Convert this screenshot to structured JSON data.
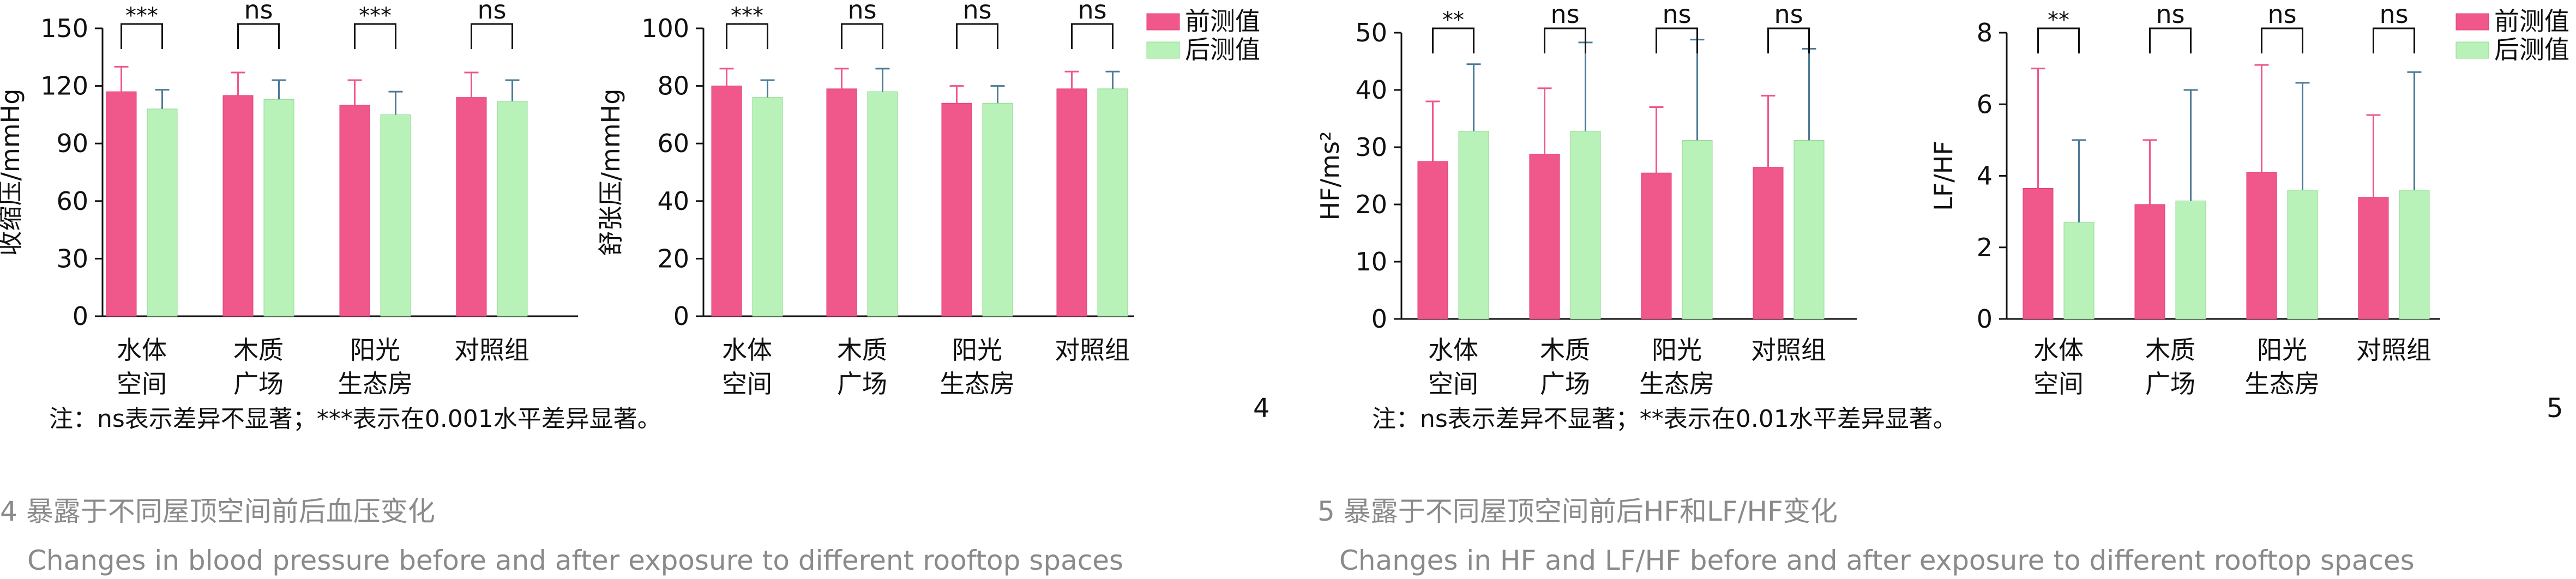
{
  "colors": {
    "before": "#f0578a",
    "after": "#b8f2b8",
    "axis": "#111111",
    "caption": "#8a8a8a",
    "before_err": "#f0578a",
    "after_err": "#4d7a96"
  },
  "figures": [
    {
      "number": "4",
      "note": "注：ns表示差异不显著；***表示在0.001水平差异显著。",
      "caption_cn": "4 暴露于不同屋顶空间前后血压变化",
      "caption_en": "Changes in blood pressure before and after exposure to different rooftop spaces"
    },
    {
      "number": "5",
      "note": "注：ns表示差异不显著；**表示在0.01水平差异显著。",
      "caption_cn": "5 暴露于不同屋顶空间前后HF和LF/HF变化",
      "caption_en": "Changes in HF and LF/HF before and after exposure to different rooftop spaces"
    }
  ],
  "chart_data": [
    {
      "type": "bar",
      "ylabel": "收缩压/mmHg",
      "ylim": [
        0,
        150
      ],
      "yticks": [
        0,
        30,
        60,
        90,
        120,
        150
      ],
      "categories": [
        [
          "水体",
          "空间"
        ],
        [
          "木质",
          "广场"
        ],
        [
          "阳光",
          "生态房"
        ],
        [
          "对照组"
        ]
      ],
      "series": [
        {
          "name": "前测值",
          "values": [
            117,
            115,
            110,
            114
          ],
          "errors": [
            13,
            12,
            13,
            13
          ]
        },
        {
          "name": "后测值",
          "values": [
            108,
            113,
            105,
            112
          ],
          "errors": [
            10,
            10,
            12,
            11
          ]
        }
      ],
      "significance": [
        "***",
        "ns",
        "***",
        "ns"
      ],
      "legend": false
    },
    {
      "type": "bar",
      "ylabel": "舒张压/mmHg",
      "ylim": [
        0,
        100
      ],
      "yticks": [
        0,
        20,
        40,
        60,
        80,
        100
      ],
      "categories": [
        [
          "水体",
          "空间"
        ],
        [
          "木质",
          "广场"
        ],
        [
          "阳光",
          "生态房"
        ],
        [
          "对照组"
        ]
      ],
      "series": [
        {
          "name": "前测值",
          "values": [
            80,
            79,
            74,
            79
          ],
          "errors": [
            6,
            7,
            6,
            6
          ]
        },
        {
          "name": "后测值",
          "values": [
            76,
            78,
            74,
            79
          ],
          "errors": [
            6,
            8,
            6,
            6
          ]
        }
      ],
      "significance": [
        "***",
        "ns",
        "ns",
        "ns"
      ],
      "legend": true,
      "legend_position": "top-right"
    },
    {
      "type": "bar",
      "ylabel": "HF/ms²",
      "ylim": [
        0,
        50
      ],
      "yticks": [
        0,
        10,
        20,
        30,
        40,
        50
      ],
      "categories": [
        [
          "水体",
          "空间"
        ],
        [
          "木质",
          "广场"
        ],
        [
          "阳光",
          "生态房"
        ],
        [
          "对照组"
        ]
      ],
      "series": [
        {
          "name": "前测值",
          "values": [
            27.5,
            28.8,
            25.5,
            26.5
          ],
          "errors": [
            10.5,
            11.5,
            11.5,
            12.5
          ]
        },
        {
          "name": "后测值",
          "values": [
            32.8,
            32.8,
            31.2,
            31.2
          ],
          "errors": [
            11.7,
            15.5,
            17.6,
            16
          ]
        }
      ],
      "significance": [
        "**",
        "ns",
        "ns",
        "ns"
      ],
      "legend": false
    },
    {
      "type": "bar",
      "ylabel": "LF/HF",
      "ylim": [
        0,
        8
      ],
      "yticks": [
        0,
        2,
        4,
        6,
        8
      ],
      "categories": [
        [
          "水体",
          "空间"
        ],
        [
          "木质",
          "广场"
        ],
        [
          "阳光",
          "生态房"
        ],
        [
          "对照组"
        ]
      ],
      "series": [
        {
          "name": "前测值",
          "values": [
            3.65,
            3.2,
            4.1,
            3.4
          ],
          "errors": [
            3.35,
            1.8,
            3.0,
            2.3
          ]
        },
        {
          "name": "后测值",
          "values": [
            2.7,
            3.3,
            3.6,
            3.6
          ],
          "errors": [
            2.3,
            3.1,
            3.0,
            3.3
          ]
        }
      ],
      "significance": [
        "**",
        "ns",
        "ns",
        "ns"
      ],
      "legend": true,
      "legend_position": "top-right"
    }
  ]
}
